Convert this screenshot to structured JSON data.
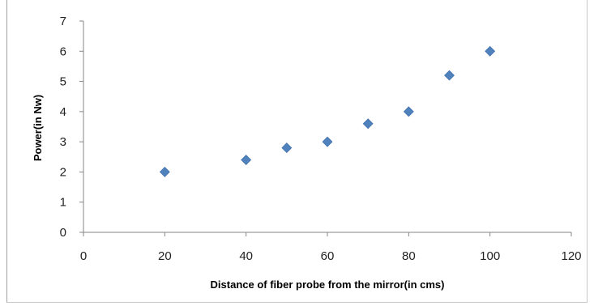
{
  "chart_data": {
    "type": "scatter",
    "title": "",
    "xlabel": "Distance of fiber probe from the mirror(in cms)",
    "ylabel": "Power(in Nw)",
    "xlim": [
      0,
      120
    ],
    "ylim": [
      0,
      7
    ],
    "x_ticks": [
      "0",
      "20",
      "40",
      "60",
      "80",
      "100",
      "120"
    ],
    "y_ticks": [
      "0",
      "1",
      "2",
      "3",
      "4",
      "5",
      "6",
      "7"
    ],
    "grid": false,
    "legend": "none",
    "marker": "diamond",
    "marker_color": "#4f81bd",
    "axis_color": "#868686",
    "series": [
      {
        "x": [
          20,
          40,
          50,
          60,
          70,
          80,
          90,
          100
        ],
        "y": [
          2.0,
          2.4,
          2.8,
          3.0,
          3.6,
          4.0,
          5.2,
          6.0
        ]
      }
    ]
  }
}
